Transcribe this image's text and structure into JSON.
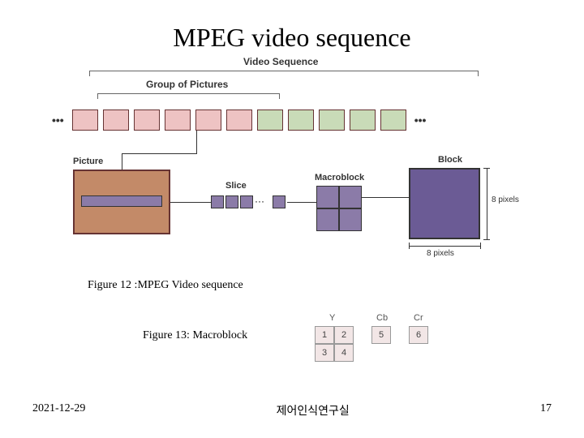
{
  "title": "MPEG video sequence",
  "figure12": {
    "video_sequence_label": "Video Sequence",
    "gop_label": "Group of Pictures",
    "picture_label": "Picture",
    "slice_label": "Slice",
    "macroblock_label": "Macroblock",
    "block_label": "Block",
    "dim_h": "8 pixels",
    "dim_w": "8 pixels",
    "caption": "Figure 12 :MPEG Video sequence",
    "colors": {
      "frame_pink": "#EEC3C3",
      "frame_green": "#C9DBB8",
      "picture_fill": "#C38A68",
      "slice_fill": "#8B7BA8",
      "block_fill": "#6B5B95",
      "border": "#663333"
    },
    "sequence_frames": [
      {
        "color": "pink"
      },
      {
        "color": "pink"
      },
      {
        "color": "pink"
      },
      {
        "color": "pink"
      },
      {
        "color": "pink"
      },
      {
        "color": "pink"
      },
      {
        "color": "green"
      },
      {
        "color": "green"
      },
      {
        "color": "green"
      },
      {
        "color": "green"
      },
      {
        "color": "green"
      }
    ],
    "gop_span": {
      "start_idx": 0,
      "end_idx": 5
    }
  },
  "figure13": {
    "caption": "Figure 13: Macroblock",
    "columns": [
      {
        "label": "Y",
        "grid": [
          [
            "1",
            "2"
          ],
          [
            "3",
            "4"
          ]
        ],
        "cols": 2
      },
      {
        "label": "Cb",
        "grid": [
          [
            "5"
          ]
        ],
        "cols": 1
      },
      {
        "label": "Cr",
        "grid": [
          [
            "6"
          ]
        ],
        "cols": 1
      }
    ],
    "cell_bg": "#F2E6E6",
    "cell_border": "#999999"
  },
  "footer": {
    "date": "2021-12-29",
    "lab": "제어인식연구실",
    "page": "17"
  }
}
